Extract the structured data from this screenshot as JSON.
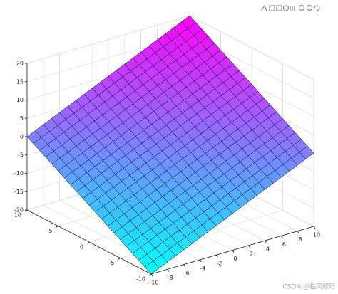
{
  "chart_data": {
    "type": "surface",
    "x": [
      -10,
      -9,
      -8,
      -7,
      -6,
      -5,
      -4,
      -3,
      -2,
      -1,
      0,
      1,
      2,
      3,
      4,
      5,
      6,
      7,
      8,
      9,
      10
    ],
    "y": [
      -10,
      -9,
      -8,
      -7,
      -6,
      -5,
      -4,
      -3,
      -2,
      -1,
      0,
      1,
      2,
      3,
      4,
      5,
      6,
      7,
      8,
      9,
      10
    ],
    "z": [
      [
        -20,
        -19,
        -18,
        -17,
        -16,
        -15,
        -14,
        -13,
        -12,
        -11,
        -10,
        -9,
        -8,
        -7,
        -6,
        -5,
        -4,
        -3,
        -2,
        -1,
        0
      ],
      [
        -19,
        -18,
        -17,
        -16,
        -15,
        -14,
        -13,
        -12,
        -11,
        -10,
        -9,
        -8,
        -7,
        -6,
        -5,
        -4,
        -3,
        -2,
        -1,
        0,
        1
      ],
      [
        -18,
        -17,
        -16,
        -15,
        -14,
        -13,
        -12,
        -11,
        -10,
        -9,
        -8,
        -7,
        -6,
        -5,
        -4,
        -3,
        -2,
        -1,
        0,
        1,
        2
      ],
      [
        -17,
        -16,
        -15,
        -14,
        -13,
        -12,
        -11,
        -10,
        -9,
        -8,
        -7,
        -6,
        -5,
        -4,
        -3,
        -2,
        -1,
        0,
        1,
        2,
        3
      ],
      [
        -16,
        -15,
        -14,
        -13,
        -12,
        -11,
        -10,
        -9,
        -8,
        -7,
        -6,
        -5,
        -4,
        -3,
        -2,
        -1,
        0,
        1,
        2,
        3,
        4
      ],
      [
        -15,
        -14,
        -13,
        -12,
        -11,
        -10,
        -9,
        -8,
        -7,
        -6,
        -5,
        -4,
        -3,
        -2,
        -1,
        0,
        1,
        2,
        3,
        4,
        5
      ],
      [
        -14,
        -13,
        -12,
        -11,
        -10,
        -9,
        -8,
        -7,
        -6,
        -5,
        -4,
        -3,
        -2,
        -1,
        0,
        1,
        2,
        3,
        4,
        5,
        6
      ],
      [
        -13,
        -12,
        -11,
        -10,
        -9,
        -8,
        -7,
        -6,
        -5,
        -4,
        -3,
        -2,
        -1,
        0,
        1,
        2,
        3,
        4,
        5,
        6,
        7
      ],
      [
        -12,
        -11,
        -10,
        -9,
        -8,
        -7,
        -6,
        -5,
        -4,
        -3,
        -2,
        -1,
        0,
        1,
        2,
        3,
        4,
        5,
        6,
        7,
        8
      ],
      [
        -11,
        -10,
        -9,
        -8,
        -7,
        -6,
        -5,
        -4,
        -3,
        -2,
        -1,
        0,
        1,
        2,
        3,
        4,
        5,
        6,
        7,
        8,
        9
      ],
      [
        -10,
        -9,
        -8,
        -7,
        -6,
        -5,
        -4,
        -3,
        -2,
        -1,
        0,
        1,
        2,
        3,
        4,
        5,
        6,
        7,
        8,
        9,
        10
      ],
      [
        -9,
        -8,
        -7,
        -6,
        -5,
        -4,
        -3,
        -2,
        -1,
        0,
        1,
        2,
        3,
        4,
        5,
        6,
        7,
        8,
        9,
        10,
        11
      ],
      [
        -8,
        -7,
        -6,
        -5,
        -4,
        -3,
        -2,
        -1,
        0,
        1,
        2,
        3,
        4,
        5,
        6,
        7,
        8,
        9,
        10,
        11,
        12
      ],
      [
        -7,
        -6,
        -5,
        -4,
        -3,
        -2,
        -1,
        0,
        1,
        2,
        3,
        4,
        5,
        6,
        7,
        8,
        9,
        10,
        11,
        12,
        13
      ],
      [
        -6,
        -5,
        -4,
        -3,
        -2,
        -1,
        0,
        1,
        2,
        3,
        4,
        5,
        6,
        7,
        8,
        9,
        10,
        11,
        12,
        13,
        14
      ],
      [
        -5,
        -4,
        -3,
        -2,
        -1,
        0,
        1,
        2,
        3,
        4,
        5,
        6,
        7,
        8,
        9,
        10,
        11,
        12,
        13,
        14,
        15
      ],
      [
        -4,
        -3,
        -2,
        -1,
        0,
        1,
        2,
        3,
        4,
        5,
        6,
        7,
        8,
        9,
        10,
        11,
        12,
        13,
        14,
        15,
        16
      ],
      [
        -3,
        -2,
        -1,
        0,
        1,
        2,
        3,
        4,
        5,
        6,
        7,
        8,
        9,
        10,
        11,
        12,
        13,
        14,
        15,
        16,
        17
      ],
      [
        -2,
        -1,
        0,
        1,
        2,
        3,
        4,
        5,
        6,
        7,
        8,
        9,
        10,
        11,
        12,
        13,
        14,
        15,
        16,
        17,
        18
      ],
      [
        -1,
        0,
        1,
        2,
        3,
        4,
        5,
        6,
        7,
        8,
        9,
        10,
        11,
        12,
        13,
        14,
        15,
        16,
        17,
        18,
        19
      ],
      [
        0,
        1,
        2,
        3,
        4,
        5,
        6,
        7,
        8,
        9,
        10,
        11,
        12,
        13,
        14,
        15,
        16,
        17,
        18,
        19,
        20
      ]
    ],
    "xlim": [
      -10,
      10
    ],
    "ylim": [
      -10,
      10
    ],
    "zlim": [
      -20,
      20
    ],
    "xticks": [
      -10,
      -8,
      -6,
      -4,
      -2,
      0,
      2,
      4,
      6,
      8,
      10
    ],
    "yticks": [
      -10,
      -5,
      0,
      5,
      10
    ],
    "zticks": [
      -20,
      -15,
      -10,
      -5,
      0,
      5,
      10,
      15,
      20
    ],
    "colormap": [
      "#00ffff",
      "#ff00ff"
    ],
    "edge_color": "#000000",
    "grid": true,
    "watermark": "CSDN @临风顺阳"
  }
}
